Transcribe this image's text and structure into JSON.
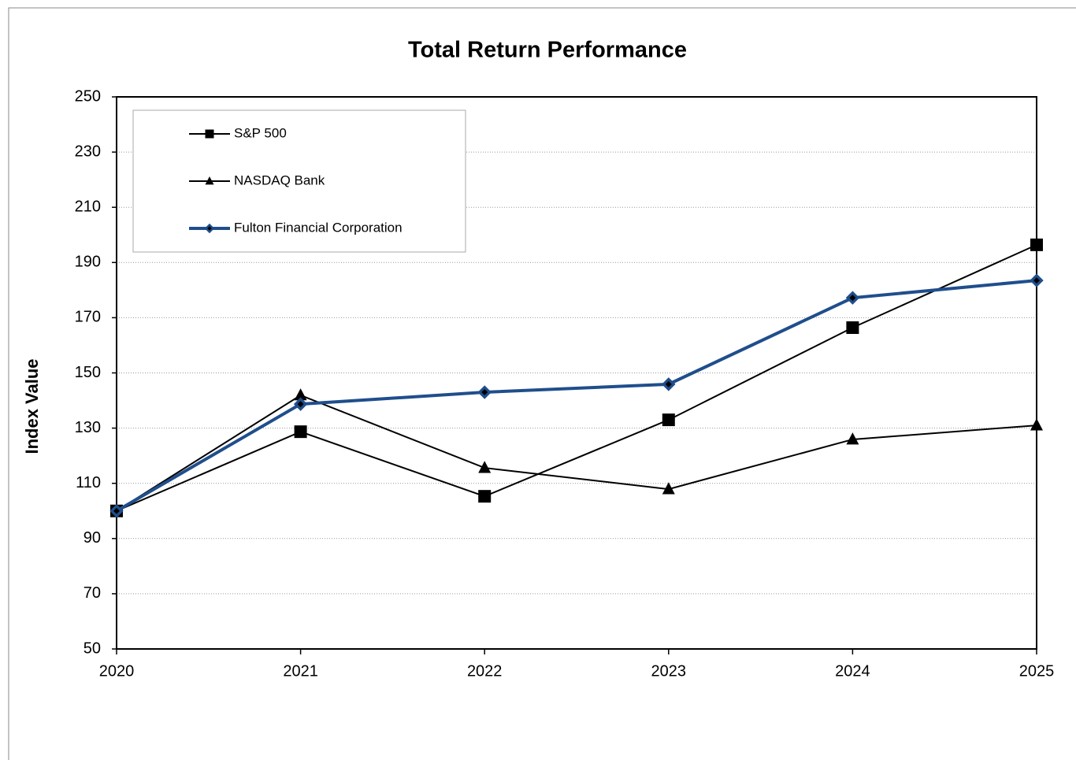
{
  "chart_data": {
    "type": "line",
    "title": "Total Return Performance",
    "ylabel": "Index Value",
    "categories": [
      "2020",
      "2021",
      "2022",
      "2023",
      "2024",
      "2025"
    ],
    "series": [
      {
        "name": "S&P 500",
        "color": "#000000",
        "marker": "square",
        "line_width": 2,
        "values": [
          100,
          128.7,
          105.3,
          133,
          166.4,
          196.4
        ]
      },
      {
        "name": "NASDAQ Bank",
        "color": "#000000",
        "marker": "triangle",
        "line_width": 2,
        "values": [
          100,
          141.9,
          115.6,
          107.9,
          125.9,
          131
        ]
      },
      {
        "name": "Fulton Financial Corporation",
        "color": "#1f4e8c",
        "marker": "diamond",
        "line_width": 4,
        "values": [
          100,
          138.7,
          143,
          145.9,
          177.2,
          183.5
        ]
      }
    ],
    "ylim": [
      50,
      250
    ],
    "yticks": [
      50,
      70,
      90,
      110,
      130,
      150,
      170,
      190,
      210,
      230,
      250
    ],
    "grid": true,
    "legend": "upper left"
  }
}
